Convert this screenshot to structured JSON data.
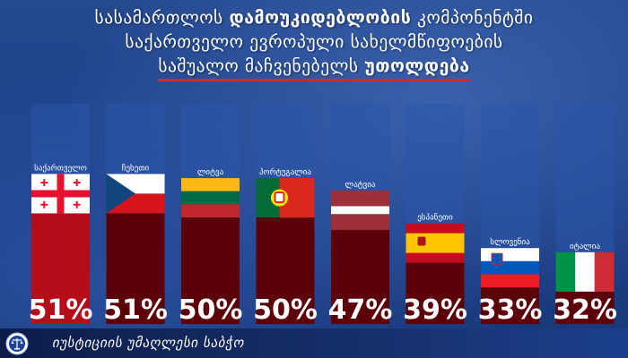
{
  "title": {
    "line1_prefix": "სასამართლოს",
    "line1_highlight": "დამოუკიდებლობის",
    "line1_suffix": "კომპონენტში",
    "line2": "საქართველო ევროპული სახელმწიფოების",
    "line3_prefix": "საშუალო მაჩვენებელს",
    "line3_highlight": "უთოლდება"
  },
  "colors": {
    "bar_dark": "#5c0009",
    "bar_highlight": "#b50d19",
    "column_bg": "#2c56a9",
    "underline": "#d9262b"
  },
  "chart_data": {
    "type": "bar",
    "categories": [
      "საქართველო",
      "ჩეხეთი",
      "ლიტვა",
      "პორტუგალია",
      "ლატვია",
      "ესპანეთი",
      "სლოვენია",
      "იტალია"
    ],
    "values": [
      51,
      51,
      50,
      50,
      47,
      39,
      33,
      32
    ],
    "value_labels": [
      "51%",
      "51%",
      "50%",
      "50%",
      "47%",
      "39%",
      "33%",
      "32%"
    ],
    "highlight": "საქართველო",
    "flags": [
      "georgia-flag-icon",
      "czech-flag-icon",
      "lithuania-flag-icon",
      "portugal-flag-icon",
      "latvia-flag-icon",
      "spain-flag-icon",
      "slovenia-flag-icon",
      "italy-flag-icon"
    ],
    "ylim": [
      0,
      100
    ],
    "grid": false,
    "legend": "none"
  },
  "footer": {
    "org_name": "იუსტიციის უმაღლესი საბჭო",
    "logo_icon": "scales-emblem-icon"
  }
}
